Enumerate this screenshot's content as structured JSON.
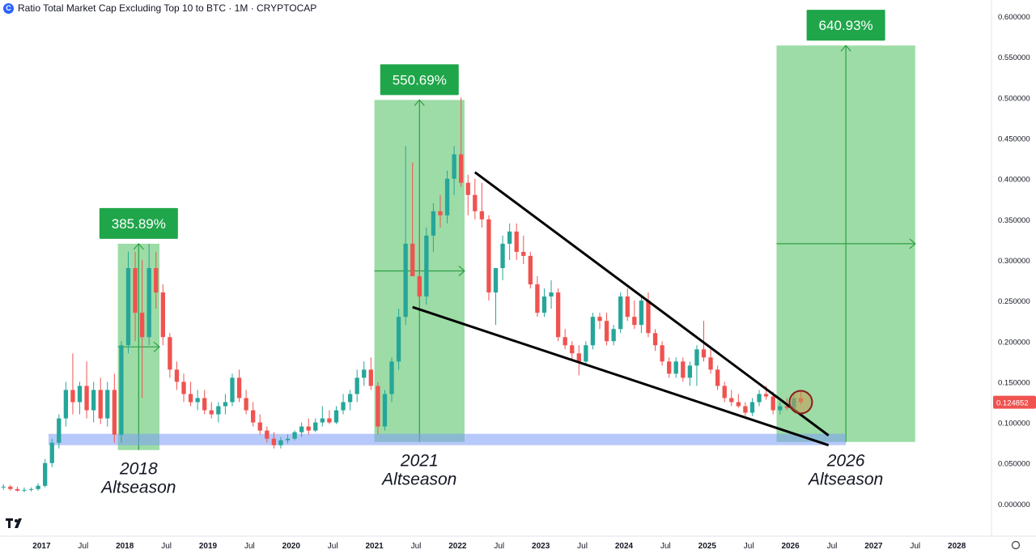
{
  "header": {
    "title": "Ratio Total Market Cap Excluding Top 10 to BTC · 1M · CRYPTOCAP",
    "icon": "coin-icon"
  },
  "logo": {
    "name": "tradingview-logo-icon"
  },
  "chart_data": {
    "type": "candlestick",
    "colors": {
      "up": "#26a69a",
      "down": "#ef5350",
      "zone": "#4caf50",
      "support": "#7b9cf5",
      "last_price_bg": "#ef5350"
    },
    "yaxis": {
      "range": [
        -0.04,
        0.62
      ],
      "ticks": [
        0.6,
        0.55,
        0.5,
        0.45,
        0.4,
        0.35,
        0.3,
        0.25,
        0.2,
        0.15,
        0.1,
        0.05,
        0.0
      ],
      "tick_labels": [
        "0.600000",
        "0.550000",
        "0.500000",
        "0.450000",
        "0.400000",
        "0.350000",
        "0.300000",
        "0.250000",
        "0.200000",
        "0.150000",
        "0.100000",
        "0.050000",
        "0.000000"
      ],
      "last_price": 0.124852,
      "last_price_label": "0.124852"
    },
    "xaxis": {
      "start": "2016-07",
      "end": "2028-05",
      "ticks": [
        {
          "date": "2017-01",
          "label": "2017",
          "major": true
        },
        {
          "date": "2017-07",
          "label": "Jul",
          "major": false
        },
        {
          "date": "2018-01",
          "label": "2018",
          "major": true
        },
        {
          "date": "2018-07",
          "label": "Jul",
          "major": false
        },
        {
          "date": "2019-01",
          "label": "2019",
          "major": true
        },
        {
          "date": "2019-07",
          "label": "Jul",
          "major": false
        },
        {
          "date": "2020-01",
          "label": "2020",
          "major": true
        },
        {
          "date": "2020-07",
          "label": "Jul",
          "major": false
        },
        {
          "date": "2021-01",
          "label": "2021",
          "major": true
        },
        {
          "date": "2021-07",
          "label": "Jul",
          "major": false
        },
        {
          "date": "2022-01",
          "label": "2022",
          "major": true
        },
        {
          "date": "2022-07",
          "label": "Jul",
          "major": false
        },
        {
          "date": "2023-01",
          "label": "2023",
          "major": true
        },
        {
          "date": "2023-07",
          "label": "Jul",
          "major": false
        },
        {
          "date": "2024-01",
          "label": "2024",
          "major": true
        },
        {
          "date": "2024-07",
          "label": "Jul",
          "major": false
        },
        {
          "date": "2025-01",
          "label": "2025",
          "major": true
        },
        {
          "date": "2025-07",
          "label": "Jul",
          "major": false
        },
        {
          "date": "2026-01",
          "label": "2026",
          "major": true
        },
        {
          "date": "2026-07",
          "label": "Jul",
          "major": false
        },
        {
          "date": "2027-01",
          "label": "2027",
          "major": true
        },
        {
          "date": "2027-07",
          "label": "Jul",
          "major": false
        },
        {
          "date": "2028-01",
          "label": "2028",
          "major": true
        }
      ]
    },
    "candles": [
      {
        "d": "2016-07",
        "o": 0.02,
        "h": 0.024,
        "l": 0.017,
        "c": 0.021
      },
      {
        "d": "2016-08",
        "o": 0.021,
        "h": 0.023,
        "l": 0.016,
        "c": 0.018
      },
      {
        "d": "2016-09",
        "o": 0.018,
        "h": 0.021,
        "l": 0.015,
        "c": 0.016
      },
      {
        "d": "2016-10",
        "o": 0.016,
        "h": 0.02,
        "l": 0.014,
        "c": 0.017
      },
      {
        "d": "2016-11",
        "o": 0.017,
        "h": 0.02,
        "l": 0.015,
        "c": 0.018
      },
      {
        "d": "2016-12",
        "o": 0.018,
        "h": 0.025,
        "l": 0.016,
        "c": 0.022
      },
      {
        "d": "2017-01",
        "o": 0.022,
        "h": 0.055,
        "l": 0.02,
        "c": 0.05
      },
      {
        "d": "2017-02",
        "o": 0.05,
        "h": 0.08,
        "l": 0.045,
        "c": 0.075
      },
      {
        "d": "2017-03",
        "o": 0.075,
        "h": 0.11,
        "l": 0.068,
        "c": 0.105
      },
      {
        "d": "2017-04",
        "o": 0.105,
        "h": 0.15,
        "l": 0.095,
        "c": 0.14
      },
      {
        "d": "2017-05",
        "o": 0.14,
        "h": 0.185,
        "l": 0.11,
        "c": 0.125
      },
      {
        "d": "2017-06",
        "o": 0.125,
        "h": 0.15,
        "l": 0.11,
        "c": 0.145
      },
      {
        "d": "2017-07",
        "o": 0.145,
        "h": 0.175,
        "l": 0.105,
        "c": 0.115
      },
      {
        "d": "2017-08",
        "o": 0.115,
        "h": 0.15,
        "l": 0.1,
        "c": 0.14
      },
      {
        "d": "2017-09",
        "o": 0.14,
        "h": 0.155,
        "l": 0.098,
        "c": 0.105
      },
      {
        "d": "2017-10",
        "o": 0.105,
        "h": 0.15,
        "l": 0.095,
        "c": 0.14
      },
      {
        "d": "2017-11",
        "o": 0.14,
        "h": 0.16,
        "l": 0.075,
        "c": 0.085
      },
      {
        "d": "2017-12",
        "o": 0.085,
        "h": 0.2,
        "l": 0.075,
        "c": 0.195
      },
      {
        "d": "2018-01",
        "o": 0.195,
        "h": 0.31,
        "l": 0.185,
        "c": 0.29
      },
      {
        "d": "2018-02",
        "o": 0.29,
        "h": 0.31,
        "l": 0.2,
        "c": 0.235
      },
      {
        "d": "2018-03",
        "o": 0.235,
        "h": 0.3,
        "l": 0.13,
        "c": 0.205
      },
      {
        "d": "2018-04",
        "o": 0.205,
        "h": 0.32,
        "l": 0.195,
        "c": 0.29
      },
      {
        "d": "2018-05",
        "o": 0.29,
        "h": 0.31,
        "l": 0.24,
        "c": 0.26
      },
      {
        "d": "2018-06",
        "o": 0.26,
        "h": 0.27,
        "l": 0.195,
        "c": 0.205
      },
      {
        "d": "2018-07",
        "o": 0.205,
        "h": 0.21,
        "l": 0.155,
        "c": 0.165
      },
      {
        "d": "2018-08",
        "o": 0.165,
        "h": 0.175,
        "l": 0.14,
        "c": 0.15
      },
      {
        "d": "2018-09",
        "o": 0.15,
        "h": 0.16,
        "l": 0.125,
        "c": 0.135
      },
      {
        "d": "2018-10",
        "o": 0.135,
        "h": 0.15,
        "l": 0.12,
        "c": 0.125
      },
      {
        "d": "2018-11",
        "o": 0.125,
        "h": 0.14,
        "l": 0.115,
        "c": 0.13
      },
      {
        "d": "2018-12",
        "o": 0.13,
        "h": 0.14,
        "l": 0.11,
        "c": 0.115
      },
      {
        "d": "2019-01",
        "o": 0.115,
        "h": 0.125,
        "l": 0.105,
        "c": 0.11
      },
      {
        "d": "2019-02",
        "o": 0.11,
        "h": 0.125,
        "l": 0.1,
        "c": 0.12
      },
      {
        "d": "2019-03",
        "o": 0.12,
        "h": 0.135,
        "l": 0.11,
        "c": 0.125
      },
      {
        "d": "2019-04",
        "o": 0.125,
        "h": 0.16,
        "l": 0.12,
        "c": 0.155
      },
      {
        "d": "2019-05",
        "o": 0.155,
        "h": 0.165,
        "l": 0.125,
        "c": 0.13
      },
      {
        "d": "2019-06",
        "o": 0.13,
        "h": 0.14,
        "l": 0.11,
        "c": 0.115
      },
      {
        "d": "2019-07",
        "o": 0.115,
        "h": 0.125,
        "l": 0.095,
        "c": 0.1
      },
      {
        "d": "2019-08",
        "o": 0.1,
        "h": 0.11,
        "l": 0.085,
        "c": 0.09
      },
      {
        "d": "2019-09",
        "o": 0.09,
        "h": 0.095,
        "l": 0.075,
        "c": 0.08
      },
      {
        "d": "2019-10",
        "o": 0.08,
        "h": 0.088,
        "l": 0.068,
        "c": 0.072
      },
      {
        "d": "2019-11",
        "o": 0.072,
        "h": 0.082,
        "l": 0.068,
        "c": 0.078
      },
      {
        "d": "2019-12",
        "o": 0.078,
        "h": 0.085,
        "l": 0.074,
        "c": 0.08
      },
      {
        "d": "2020-01",
        "o": 0.08,
        "h": 0.09,
        "l": 0.078,
        "c": 0.088
      },
      {
        "d": "2020-02",
        "o": 0.088,
        "h": 0.1,
        "l": 0.082,
        "c": 0.095
      },
      {
        "d": "2020-03",
        "o": 0.095,
        "h": 0.105,
        "l": 0.085,
        "c": 0.09
      },
      {
        "d": "2020-04",
        "o": 0.09,
        "h": 0.105,
        "l": 0.088,
        "c": 0.1
      },
      {
        "d": "2020-05",
        "o": 0.1,
        "h": 0.12,
        "l": 0.095,
        "c": 0.105
      },
      {
        "d": "2020-06",
        "o": 0.105,
        "h": 0.115,
        "l": 0.098,
        "c": 0.1
      },
      {
        "d": "2020-07",
        "o": 0.1,
        "h": 0.12,
        "l": 0.098,
        "c": 0.115
      },
      {
        "d": "2020-08",
        "o": 0.115,
        "h": 0.135,
        "l": 0.11,
        "c": 0.125
      },
      {
        "d": "2020-09",
        "o": 0.125,
        "h": 0.14,
        "l": 0.115,
        "c": 0.135
      },
      {
        "d": "2020-10",
        "o": 0.135,
        "h": 0.165,
        "l": 0.125,
        "c": 0.155
      },
      {
        "d": "2020-11",
        "o": 0.155,
        "h": 0.175,
        "l": 0.145,
        "c": 0.165
      },
      {
        "d": "2020-12",
        "o": 0.165,
        "h": 0.18,
        "l": 0.14,
        "c": 0.145
      },
      {
        "d": "2021-01",
        "o": 0.145,
        "h": 0.15,
        "l": 0.085,
        "c": 0.095
      },
      {
        "d": "2021-02",
        "o": 0.095,
        "h": 0.14,
        "l": 0.09,
        "c": 0.135
      },
      {
        "d": "2021-03",
        "o": 0.135,
        "h": 0.18,
        "l": 0.125,
        "c": 0.175
      },
      {
        "d": "2021-04",
        "o": 0.175,
        "h": 0.24,
        "l": 0.165,
        "c": 0.23
      },
      {
        "d": "2021-05",
        "o": 0.23,
        "h": 0.44,
        "l": 0.22,
        "c": 0.32
      },
      {
        "d": "2021-06",
        "o": 0.32,
        "h": 0.42,
        "l": 0.28,
        "c": 0.28
      },
      {
        "d": "2021-07",
        "o": 0.28,
        "h": 0.33,
        "l": 0.25,
        "c": 0.255
      },
      {
        "d": "2021-08",
        "o": 0.255,
        "h": 0.34,
        "l": 0.245,
        "c": 0.33
      },
      {
        "d": "2021-09",
        "o": 0.33,
        "h": 0.37,
        "l": 0.31,
        "c": 0.36
      },
      {
        "d": "2021-10",
        "o": 0.36,
        "h": 0.38,
        "l": 0.34,
        "c": 0.355
      },
      {
        "d": "2021-11",
        "o": 0.355,
        "h": 0.41,
        "l": 0.345,
        "c": 0.4
      },
      {
        "d": "2021-12",
        "o": 0.4,
        "h": 0.44,
        "l": 0.38,
        "c": 0.43
      },
      {
        "d": "2022-01",
        "o": 0.43,
        "h": 0.5,
        "l": 0.39,
        "c": 0.395
      },
      {
        "d": "2022-02",
        "o": 0.395,
        "h": 0.405,
        "l": 0.355,
        "c": 0.38
      },
      {
        "d": "2022-03",
        "o": 0.38,
        "h": 0.4,
        "l": 0.35,
        "c": 0.36
      },
      {
        "d": "2022-04",
        "o": 0.36,
        "h": 0.395,
        "l": 0.34,
        "c": 0.35
      },
      {
        "d": "2022-05",
        "o": 0.35,
        "h": 0.355,
        "l": 0.25,
        "c": 0.26
      },
      {
        "d": "2022-06",
        "o": 0.26,
        "h": 0.29,
        "l": 0.22,
        "c": 0.29
      },
      {
        "d": "2022-07",
        "o": 0.29,
        "h": 0.33,
        "l": 0.275,
        "c": 0.32
      },
      {
        "d": "2022-08",
        "o": 0.32,
        "h": 0.345,
        "l": 0.3,
        "c": 0.335
      },
      {
        "d": "2022-09",
        "o": 0.335,
        "h": 0.345,
        "l": 0.3,
        "c": 0.31
      },
      {
        "d": "2022-10",
        "o": 0.31,
        "h": 0.33,
        "l": 0.295,
        "c": 0.305
      },
      {
        "d": "2022-11",
        "o": 0.305,
        "h": 0.31,
        "l": 0.265,
        "c": 0.27
      },
      {
        "d": "2022-12",
        "o": 0.27,
        "h": 0.28,
        "l": 0.23,
        "c": 0.235
      },
      {
        "d": "2023-01",
        "o": 0.235,
        "h": 0.265,
        "l": 0.23,
        "c": 0.255
      },
      {
        "d": "2023-02",
        "o": 0.255,
        "h": 0.275,
        "l": 0.24,
        "c": 0.26
      },
      {
        "d": "2023-03",
        "o": 0.26,
        "h": 0.265,
        "l": 0.2,
        "c": 0.205
      },
      {
        "d": "2023-04",
        "o": 0.205,
        "h": 0.215,
        "l": 0.19,
        "c": 0.195
      },
      {
        "d": "2023-05",
        "o": 0.195,
        "h": 0.2,
        "l": 0.178,
        "c": 0.185
      },
      {
        "d": "2023-06",
        "o": 0.185,
        "h": 0.195,
        "l": 0.158,
        "c": 0.175
      },
      {
        "d": "2023-07",
        "o": 0.175,
        "h": 0.2,
        "l": 0.17,
        "c": 0.195
      },
      {
        "d": "2023-08",
        "o": 0.195,
        "h": 0.235,
        "l": 0.19,
        "c": 0.23
      },
      {
        "d": "2023-09",
        "o": 0.23,
        "h": 0.235,
        "l": 0.215,
        "c": 0.225
      },
      {
        "d": "2023-10",
        "o": 0.225,
        "h": 0.235,
        "l": 0.195,
        "c": 0.2
      },
      {
        "d": "2023-11",
        "o": 0.2,
        "h": 0.22,
        "l": 0.195,
        "c": 0.215
      },
      {
        "d": "2023-12",
        "o": 0.215,
        "h": 0.26,
        "l": 0.21,
        "c": 0.255
      },
      {
        "d": "2024-01",
        "o": 0.255,
        "h": 0.265,
        "l": 0.225,
        "c": 0.23
      },
      {
        "d": "2024-02",
        "o": 0.23,
        "h": 0.25,
        "l": 0.215,
        "c": 0.22
      },
      {
        "d": "2024-03",
        "o": 0.22,
        "h": 0.255,
        "l": 0.21,
        "c": 0.25
      },
      {
        "d": "2024-04",
        "o": 0.25,
        "h": 0.26,
        "l": 0.205,
        "c": 0.21
      },
      {
        "d": "2024-05",
        "o": 0.21,
        "h": 0.215,
        "l": 0.188,
        "c": 0.195
      },
      {
        "d": "2024-06",
        "o": 0.195,
        "h": 0.2,
        "l": 0.17,
        "c": 0.175
      },
      {
        "d": "2024-07",
        "o": 0.175,
        "h": 0.18,
        "l": 0.155,
        "c": 0.16
      },
      {
        "d": "2024-08",
        "o": 0.16,
        "h": 0.18,
        "l": 0.155,
        "c": 0.175
      },
      {
        "d": "2024-09",
        "o": 0.175,
        "h": 0.18,
        "l": 0.15,
        "c": 0.155
      },
      {
        "d": "2024-10",
        "o": 0.155,
        "h": 0.175,
        "l": 0.145,
        "c": 0.17
      },
      {
        "d": "2024-11",
        "o": 0.17,
        "h": 0.195,
        "l": 0.145,
        "c": 0.19
      },
      {
        "d": "2024-12",
        "o": 0.19,
        "h": 0.225,
        "l": 0.175,
        "c": 0.18
      },
      {
        "d": "2025-01",
        "o": 0.18,
        "h": 0.19,
        "l": 0.16,
        "c": 0.165
      },
      {
        "d": "2025-02",
        "o": 0.165,
        "h": 0.17,
        "l": 0.14,
        "c": 0.145
      },
      {
        "d": "2025-03",
        "o": 0.145,
        "h": 0.15,
        "l": 0.125,
        "c": 0.13
      },
      {
        "d": "2025-04",
        "o": 0.13,
        "h": 0.14,
        "l": 0.12,
        "c": 0.125
      },
      {
        "d": "2025-05",
        "o": 0.125,
        "h": 0.135,
        "l": 0.118,
        "c": 0.12
      },
      {
        "d": "2025-06",
        "o": 0.12,
        "h": 0.125,
        "l": 0.108,
        "c": 0.112
      },
      {
        "d": "2025-07",
        "o": 0.112,
        "h": 0.13,
        "l": 0.108,
        "c": 0.125
      },
      {
        "d": "2025-08",
        "o": 0.125,
        "h": 0.14,
        "l": 0.12,
        "c": 0.135
      },
      {
        "d": "2025-09",
        "o": 0.135,
        "h": 0.145,
        "l": 0.128,
        "c": 0.132
      },
      {
        "d": "2025-10",
        "o": 0.132,
        "h": 0.138,
        "l": 0.11,
        "c": 0.115
      },
      {
        "d": "2025-11",
        "o": 0.115,
        "h": 0.125,
        "l": 0.11,
        "c": 0.12
      },
      {
        "d": "2025-12",
        "o": 0.12,
        "h": 0.13,
        "l": 0.115,
        "c": 0.118
      },
      {
        "d": "2026-01",
        "o": 0.118,
        "h": 0.135,
        "l": 0.115,
        "c": 0.13
      },
      {
        "d": "2026-02",
        "o": 0.13,
        "h": 0.14,
        "l": 0.122,
        "c": 0.1249
      }
    ],
    "zones": [
      {
        "start": "2017-12",
        "end": "2018-05",
        "low": 0.066,
        "high": 0.32,
        "percent": "385.89%",
        "label": [
          "2018",
          "Altseason"
        ]
      },
      {
        "start": "2021-01",
        "end": "2022-01",
        "low": 0.076,
        "high": 0.497,
        "percent": "550.69%",
        "label": [
          "2021",
          "Altseason"
        ]
      },
      {
        "start": "2025-11",
        "end": "2027-06",
        "low": 0.076,
        "high": 0.564,
        "percent": "640.93%",
        "label": [
          "2026",
          "Altseason"
        ]
      }
    ],
    "support_band": {
      "start": "2017-02",
      "end": "2026-08",
      "low": 0.072,
      "high": 0.086
    },
    "wedge": {
      "upper": [
        {
          "d": "2022-03",
          "v": 0.408
        },
        {
          "d": "2026-06",
          "v": 0.084
        }
      ],
      "lower": [
        {
          "d": "2021-06",
          "v": 0.242
        },
        {
          "d": "2026-06",
          "v": 0.072
        }
      ]
    },
    "marker": {
      "d": "2026-02",
      "v": 0.125
    }
  }
}
